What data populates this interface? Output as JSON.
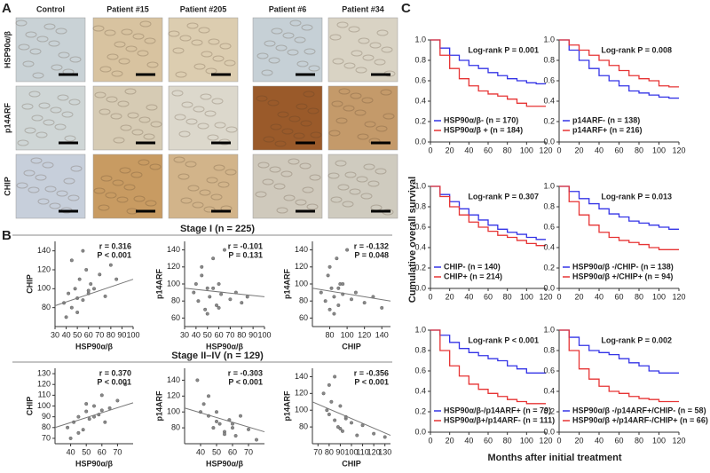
{
  "panel_labels": [
    "A",
    "B",
    "C"
  ],
  "micrographs": {
    "columns": [
      "Control",
      "Patient #15",
      "Patient #205",
      "Patient #6",
      "Patient #34"
    ],
    "rows": [
      "HSP90α/β",
      "p14ARF",
      "CHIP"
    ]
  },
  "stage_titles": [
    "Stage I (n = 225)",
    "Stage II–IV (n = 129)"
  ],
  "shared_ylabel": "Cumulative overall survival",
  "shared_xlabel": "Months after initial treatment",
  "chart_data": [
    {
      "type": "scatter",
      "xlabel": "HSP90α/β",
      "ylabel": "CHIP",
      "annotations": [
        "r = 0.316",
        "P < 0.001"
      ],
      "xlim": [
        30,
        100
      ],
      "xticks": [
        30,
        40,
        50,
        60,
        70,
        80,
        90,
        100
      ],
      "ylim": [
        60,
        150
      ],
      "yticks": [
        80,
        100,
        120,
        140
      ],
      "x": [
        38,
        42,
        45,
        48,
        50,
        52,
        55,
        58,
        60,
        62,
        65,
        70,
        75,
        80,
        85,
        45,
        50,
        55,
        40,
        60
      ],
      "values": [
        85,
        95,
        80,
        100,
        90,
        110,
        88,
        120,
        95,
        105,
        100,
        115,
        92,
        125,
        110,
        130,
        75,
        140,
        70,
        98
      ],
      "fit": [
        82,
        110
      ]
    },
    {
      "type": "scatter",
      "xlabel": "HSP90α/β",
      "ylabel": "p14ARF",
      "annotations": [
        "r = -0.101",
        "P = 0.131"
      ],
      "xlim": [
        30,
        100
      ],
      "xticks": [
        30,
        40,
        50,
        60,
        70,
        80,
        90,
        100
      ],
      "ylim": [
        50,
        150
      ],
      "yticks": [
        60,
        80,
        100,
        120,
        140
      ],
      "x": [
        38,
        42,
        45,
        48,
        50,
        52,
        55,
        58,
        60,
        62,
        65,
        70,
        75,
        80,
        85,
        45,
        50,
        55,
        40,
        60
      ],
      "values": [
        90,
        80,
        110,
        70,
        95,
        85,
        130,
        75,
        100,
        88,
        140,
        82,
        90,
        78,
        85,
        120,
        65,
        95,
        100,
        72
      ],
      "fit": [
        95,
        85
      ]
    },
    {
      "type": "scatter",
      "xlabel": "CHIP",
      "ylabel": "p14ARF",
      "annotations": [
        "r = -0.132",
        "P = 0.048"
      ],
      "xlim": [
        60,
        150
      ],
      "xticks": [
        80,
        100,
        120,
        140
      ],
      "ylim": [
        50,
        150
      ],
      "yticks": [
        60,
        80,
        100,
        120,
        140
      ],
      "x": [
        70,
        75,
        78,
        80,
        82,
        85,
        88,
        90,
        92,
        95,
        100,
        105,
        110,
        120,
        130,
        80,
        85,
        90,
        95,
        140
      ],
      "values": [
        90,
        80,
        110,
        70,
        95,
        85,
        130,
        75,
        100,
        88,
        140,
        82,
        90,
        78,
        85,
        120,
        65,
        95,
        100,
        72
      ],
      "fit": [
        95,
        80
      ]
    },
    {
      "type": "scatter",
      "xlabel": "HSP90α/β",
      "ylabel": "CHIP",
      "annotations": [
        "r = 0.370",
        "P < 0.001"
      ],
      "xlim": [
        30,
        80
      ],
      "xticks": [
        40,
        50,
        60,
        70
      ],
      "ylim": [
        65,
        135
      ],
      "yticks": [
        70,
        80,
        90,
        100,
        110,
        120,
        130
      ],
      "x": [
        38,
        42,
        45,
        48,
        50,
        52,
        55,
        58,
        60,
        62,
        65,
        70,
        75,
        45,
        50,
        55,
        40,
        60
      ],
      "values": [
        80,
        85,
        90,
        78,
        95,
        88,
        100,
        92,
        110,
        85,
        98,
        105,
        120,
        75,
        102,
        90,
        70,
        96
      ],
      "fit": [
        80,
        103
      ]
    },
    {
      "type": "scatter",
      "xlabel": "HSP90α/β",
      "ylabel": "p14ARF",
      "annotations": [
        "r = -0.303",
        "P < 0.001"
      ],
      "xlim": [
        30,
        80
      ],
      "xticks": [
        40,
        50,
        60,
        70
      ],
      "ylim": [
        60,
        155
      ],
      "yticks": [
        80,
        100,
        120,
        140
      ],
      "x": [
        38,
        42,
        45,
        48,
        50,
        52,
        55,
        58,
        60,
        62,
        65,
        70,
        75,
        45,
        50,
        55,
        40,
        60
      ],
      "values": [
        140,
        110,
        95,
        80,
        100,
        85,
        75,
        90,
        80,
        70,
        95,
        78,
        65,
        120,
        88,
        72,
        100,
        85
      ],
      "fit": [
        105,
        75
      ]
    },
    {
      "type": "scatter",
      "xlabel": "CHIP",
      "ylabel": "p14ARF",
      "annotations": [
        "r = -0.356",
        "P < 0.001"
      ],
      "xlim": [
        65,
        135
      ],
      "xticks": [
        70,
        80,
        90,
        100,
        110,
        120,
        130
      ],
      "ylim": [
        60,
        150
      ],
      "yticks": [
        80,
        100,
        120,
        140
      ],
      "x": [
        75,
        78,
        80,
        82,
        85,
        88,
        90,
        92,
        95,
        100,
        105,
        110,
        120,
        130,
        85,
        90,
        95,
        80
      ],
      "values": [
        120,
        100,
        95,
        110,
        88,
        80,
        105,
        75,
        90,
        85,
        70,
        82,
        72,
        68,
        140,
        78,
        92,
        130
      ],
      "fit": [
        110,
        70
      ]
    },
    {
      "type": "line",
      "annotation": "Log-rank P = 0.001",
      "xlim": [
        0,
        120
      ],
      "xticks": [
        0,
        20,
        40,
        60,
        80,
        100,
        120
      ],
      "ylim": [
        0,
        1
      ],
      "yticks": [
        {
          "value": 0,
          "label": "0.0"
        },
        0.2,
        0.4,
        0.6,
        0.8,
        {
          "value": 1,
          "label": "1.0"
        }
      ],
      "x": [
        0,
        10,
        20,
        30,
        40,
        50,
        60,
        70,
        80,
        90,
        100,
        110,
        120
      ],
      "series": [
        {
          "name": "HSP90α/β- (n = 170)",
          "color": "#3434e6",
          "values": [
            1,
            0.92,
            0.85,
            0.8,
            0.75,
            0.72,
            0.68,
            0.65,
            0.62,
            0.6,
            0.58,
            0.57,
            0.57
          ]
        },
        {
          "name": "HSP90α/β + (n = 184)",
          "color": "#e63434",
          "values": [
            1,
            0.85,
            0.72,
            0.62,
            0.55,
            0.5,
            0.47,
            0.45,
            0.42,
            0.38,
            0.35,
            0.35,
            0.35
          ]
        }
      ]
    },
    {
      "type": "line",
      "annotation": "Log-rank P = 0.008",
      "xlim": [
        0,
        120
      ],
      "xticks": [
        0,
        20,
        40,
        60,
        80,
        100,
        120
      ],
      "ylim": [
        0,
        1
      ],
      "yticks": [
        {
          "value": 0,
          "label": "0.0"
        },
        0.2,
        0.4,
        0.6,
        0.8,
        {
          "value": 1,
          "label": "1.0"
        }
      ],
      "x": [
        0,
        10,
        20,
        30,
        40,
        50,
        60,
        70,
        80,
        90,
        100,
        110,
        120
      ],
      "series": [
        {
          "name": "p14ARF- (n = 138)",
          "color": "#3434e6",
          "values": [
            1,
            0.9,
            0.8,
            0.72,
            0.65,
            0.6,
            0.55,
            0.5,
            0.48,
            0.46,
            0.44,
            0.43,
            0.43
          ]
        },
        {
          "name": "p14ARF+ (n = 216)",
          "color": "#e63434",
          "values": [
            1,
            0.95,
            0.9,
            0.85,
            0.8,
            0.75,
            0.7,
            0.65,
            0.62,
            0.6,
            0.55,
            0.54,
            0.54
          ]
        }
      ]
    },
    {
      "type": "line",
      "annotation": "Log-rank P = 0.307",
      "xlim": [
        0,
        120
      ],
      "xticks": [
        0,
        20,
        40,
        60,
        80,
        100,
        120
      ],
      "ylim": [
        0,
        1
      ],
      "yticks": [
        {
          "value": 0,
          "label": "0.0"
        },
        0.2,
        0.4,
        0.6,
        0.8,
        {
          "value": 1,
          "label": "1.0"
        }
      ],
      "x": [
        0,
        10,
        20,
        30,
        40,
        50,
        60,
        70,
        80,
        90,
        100,
        110,
        120
      ],
      "series": [
        {
          "name": "CHIP- (n = 140)",
          "color": "#3434e6",
          "values": [
            1,
            0.92,
            0.85,
            0.78,
            0.72,
            0.67,
            0.62,
            0.58,
            0.55,
            0.53,
            0.5,
            0.48,
            0.48
          ]
        },
        {
          "name": "CHIP+ (n = 214)",
          "color": "#e63434",
          "values": [
            1,
            0.9,
            0.8,
            0.72,
            0.65,
            0.6,
            0.56,
            0.52,
            0.5,
            0.47,
            0.44,
            0.42,
            0.42
          ]
        }
      ]
    },
    {
      "type": "line",
      "annotation": "Log-rank P = 0.013",
      "xlim": [
        0,
        120
      ],
      "xticks": [
        0,
        20,
        40,
        60,
        80,
        100,
        120
      ],
      "ylim": [
        0,
        1
      ],
      "yticks": [
        {
          "value": 0,
          "label": "0.0"
        },
        0.2,
        0.4,
        0.6,
        0.8,
        {
          "value": 1,
          "label": "1.0"
        }
      ],
      "x": [
        0,
        10,
        20,
        30,
        40,
        50,
        60,
        70,
        80,
        90,
        100,
        110,
        120
      ],
      "series": [
        {
          "name": "HSP90α/β -/CHIP- (n = 138)",
          "color": "#3434e6",
          "values": [
            1,
            0.95,
            0.88,
            0.83,
            0.78,
            0.73,
            0.7,
            0.66,
            0.64,
            0.62,
            0.6,
            0.58,
            0.58
          ]
        },
        {
          "name": "HSP90α/β +/CHIP+ (n = 94)",
          "color": "#e63434",
          "values": [
            1,
            0.85,
            0.72,
            0.62,
            0.55,
            0.5,
            0.47,
            0.45,
            0.43,
            0.4,
            0.38,
            0.38,
            0.38
          ]
        }
      ]
    },
    {
      "type": "line",
      "annotation": "Log-rank P < 0.001",
      "xlim": [
        0,
        120
      ],
      "xticks": [
        0,
        20,
        40,
        60,
        80,
        100,
        120
      ],
      "ylim": [
        0,
        1
      ],
      "yticks": [
        {
          "value": 0,
          "label": "0.0"
        },
        0.2,
        0.4,
        0.6,
        0.8,
        {
          "value": 1,
          "label": "1.0"
        }
      ],
      "x": [
        0,
        10,
        20,
        30,
        40,
        50,
        60,
        70,
        80,
        90,
        100,
        110,
        120
      ],
      "series": [
        {
          "name": "HSP90α/β-/p14ARF+ (n = 79)",
          "color": "#3434e6",
          "values": [
            1,
            0.95,
            0.88,
            0.82,
            0.78,
            0.75,
            0.72,
            0.7,
            0.65,
            0.62,
            0.58,
            0.58,
            0.58
          ]
        },
        {
          "name": "HSP90α/β+/p14ARF- (n = 111)",
          "color": "#e63434",
          "values": [
            1,
            0.8,
            0.65,
            0.55,
            0.47,
            0.42,
            0.38,
            0.35,
            0.32,
            0.3,
            0.28,
            0.28,
            0.28
          ]
        }
      ]
    },
    {
      "type": "line",
      "annotation": "Log-rank P = 0.002",
      "xlim": [
        0,
        120
      ],
      "xticks": [
        0,
        20,
        40,
        60,
        80,
        100,
        120
      ],
      "ylim": [
        0,
        1
      ],
      "yticks": [
        {
          "value": 0,
          "label": "0.0"
        },
        0.2,
        0.4,
        0.6,
        0.8,
        {
          "value": 1,
          "label": "1.0"
        }
      ],
      "x": [
        0,
        10,
        20,
        30,
        40,
        50,
        60,
        70,
        80,
        90,
        100,
        110,
        120
      ],
      "series": [
        {
          "name": "HSP90α/β -/p14ARF+/CHIP- (n = 58)",
          "color": "#3434e6",
          "values": [
            1,
            0.93,
            0.85,
            0.8,
            0.78,
            0.76,
            0.72,
            0.68,
            0.65,
            0.6,
            0.58,
            0.58,
            0.58
          ]
        },
        {
          "name": "HSP90α/β +/p14ARF-/CHIP+ (n = 66)",
          "color": "#e63434",
          "values": [
            1,
            0.8,
            0.62,
            0.52,
            0.45,
            0.4,
            0.38,
            0.35,
            0.33,
            0.32,
            0.3,
            0.3,
            0.3
          ]
        }
      ]
    }
  ]
}
